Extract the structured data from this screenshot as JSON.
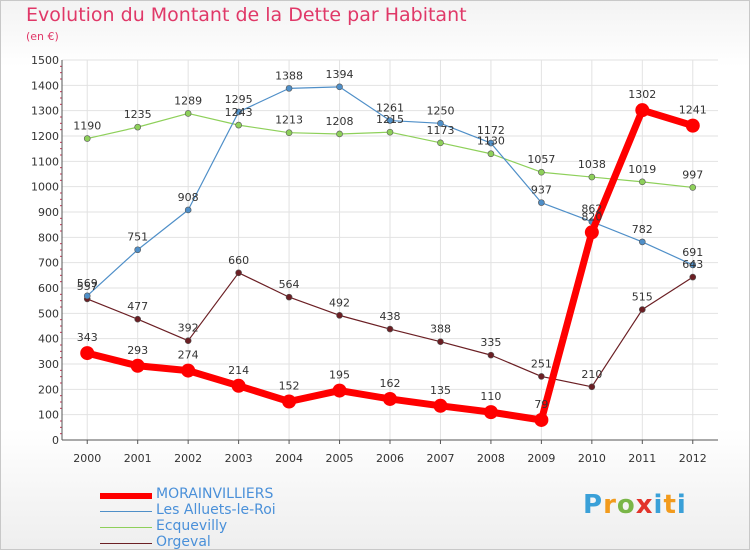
{
  "chart_data": {
    "type": "line",
    "title": "Evolution du Montant de la Dette par Habitant",
    "subtitle": "(en €)",
    "x": [
      "2000",
      "2001",
      "2002",
      "2003",
      "2004",
      "2005",
      "2006",
      "2007",
      "2008",
      "2009",
      "2010",
      "2011",
      "2012"
    ],
    "yticks": [
      0,
      100,
      200,
      300,
      400,
      500,
      600,
      700,
      800,
      900,
      1000,
      1100,
      1200,
      1300,
      1400,
      1500
    ],
    "ylim": [
      0,
      1500
    ],
    "grid": true,
    "legend_position": "bottom-left",
    "series": [
      {
        "name": "MORAINVILLIERS",
        "color": "#ff0000",
        "values": [
          343,
          293,
          274,
          214,
          152,
          195,
          162,
          135,
          110,
          79,
          820,
          1302,
          1241
        ]
      },
      {
        "name": "Les Alluets-le-Roi",
        "color": "#4f8fc8",
        "values": [
          569,
          751,
          908,
          1295,
          1388,
          1394,
          1261,
          1250,
          1172,
          937,
          862,
          782,
          691
        ]
      },
      {
        "name": "Ecquevilly",
        "color": "#8ed05a",
        "values": [
          1190,
          1235,
          1289,
          1243,
          1213,
          1208,
          1215,
          1173,
          1130,
          1057,
          1038,
          1019,
          997
        ]
      },
      {
        "name": "Orgeval",
        "color": "#6b1f24",
        "values": [
          557,
          477,
          392,
          660,
          564,
          492,
          438,
          388,
          335,
          251,
          210,
          515,
          643
        ]
      }
    ]
  },
  "logo": {
    "letters": [
      "P",
      "r",
      "o",
      "x",
      "i",
      "t",
      "i"
    ]
  }
}
